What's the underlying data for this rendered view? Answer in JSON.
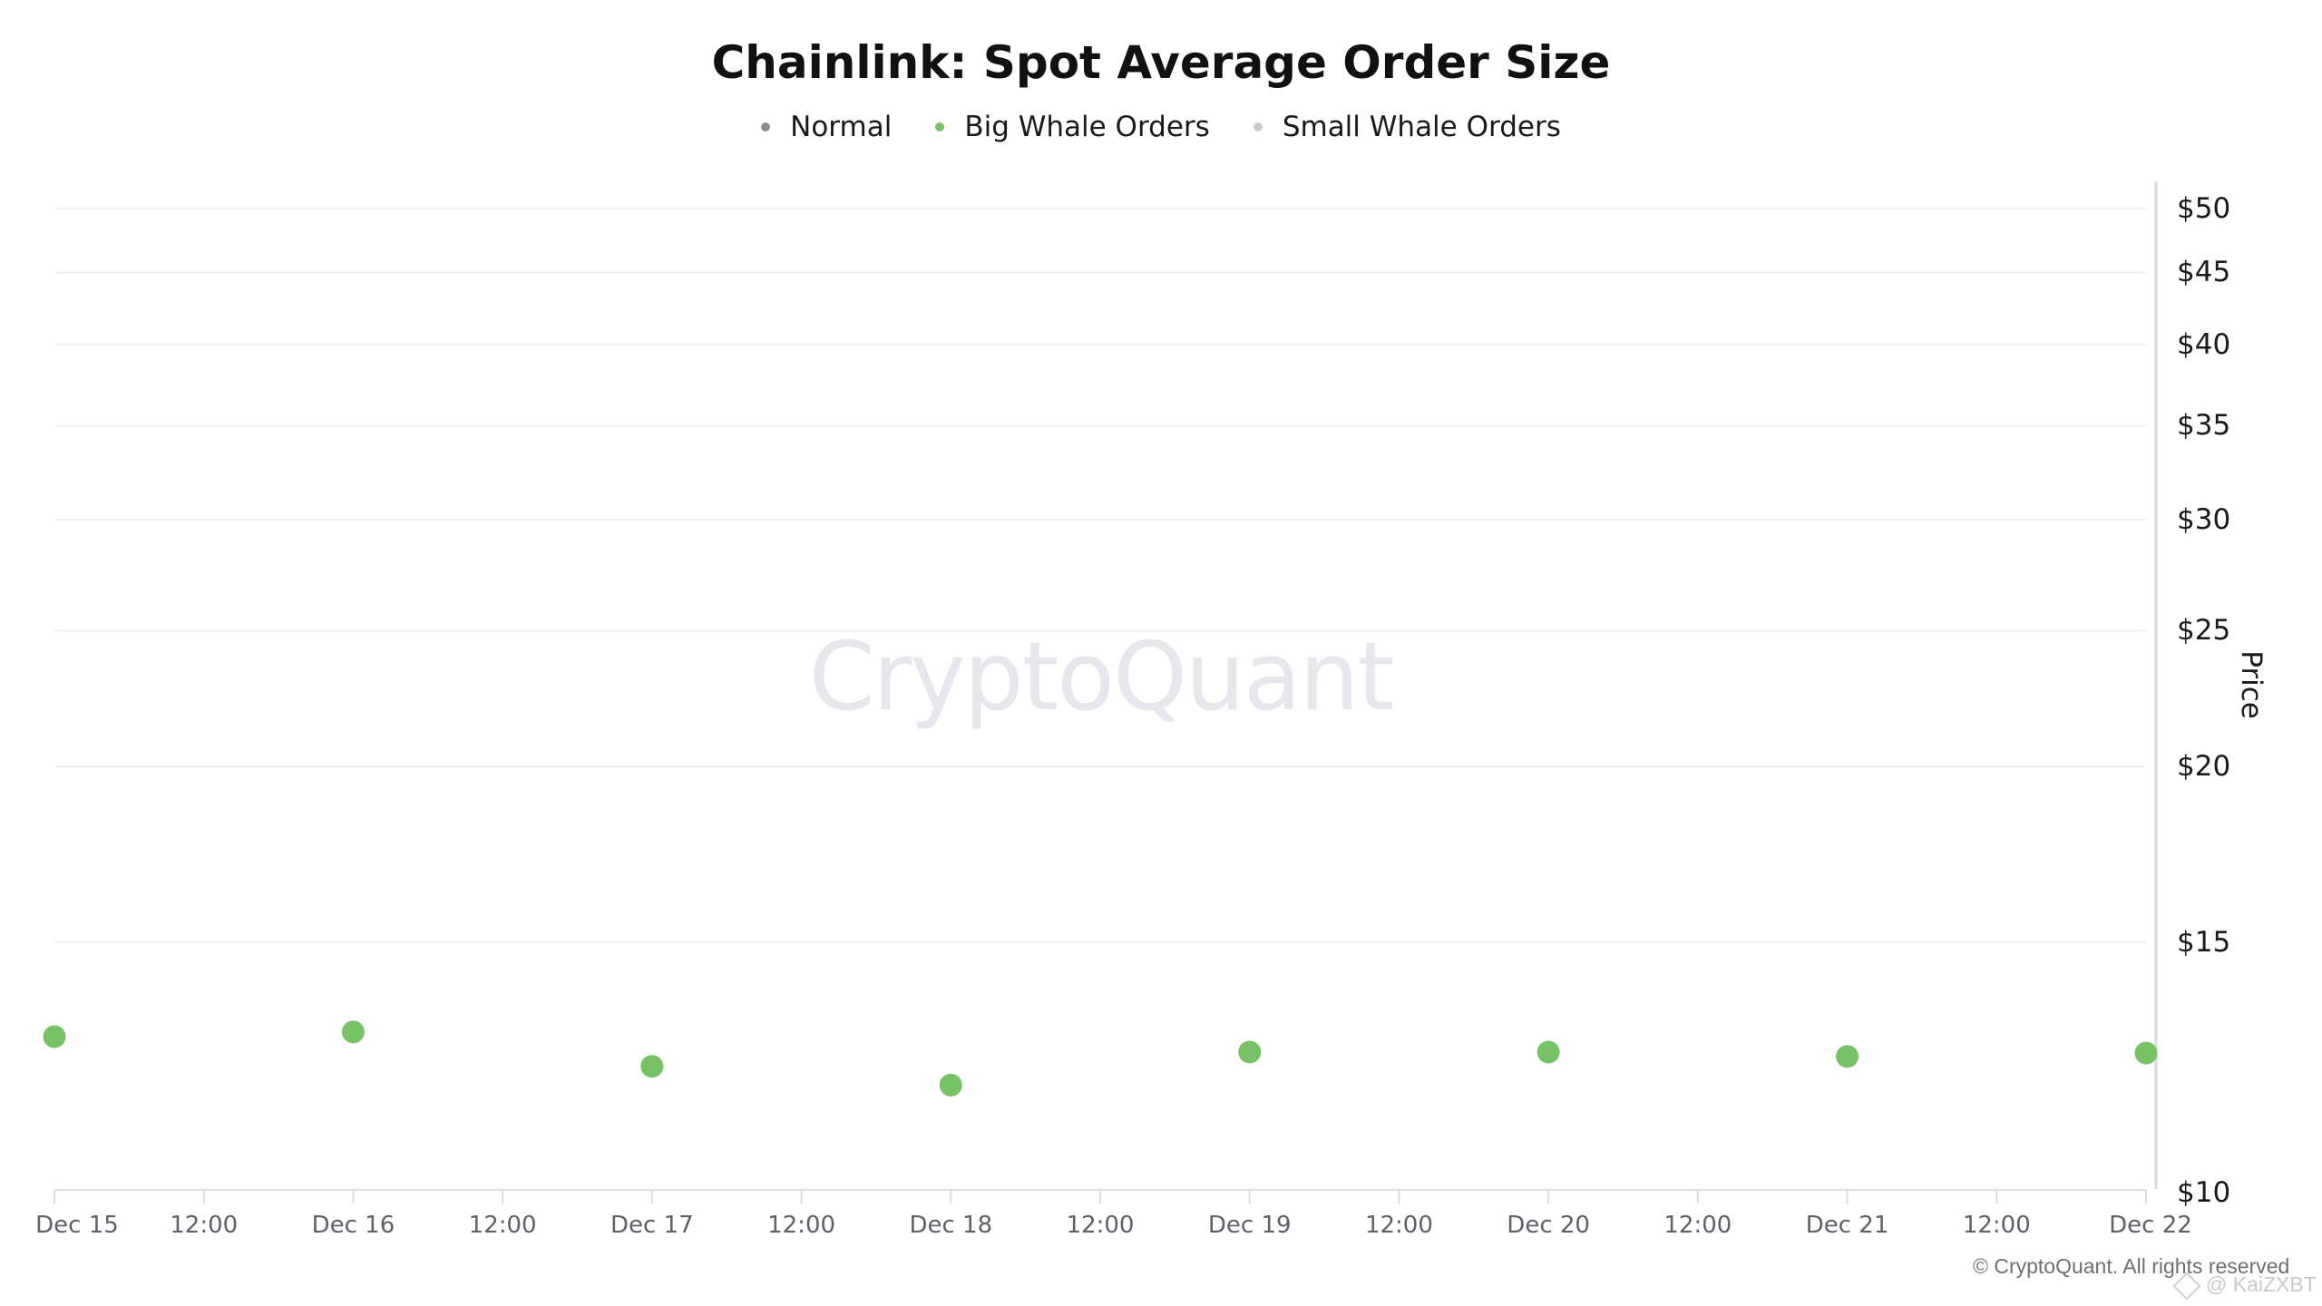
{
  "title": "Chainlink: Spot Average Order Size",
  "legend": [
    {
      "label": "Normal",
      "color": "#8c8c94"
    },
    {
      "label": "Big Whale Orders",
      "color": "#76c265"
    },
    {
      "label": "Small Whale Orders",
      "color": "#c6d2c6"
    }
  ],
  "watermark": "CryptoQuant",
  "y_axis": {
    "title": "Price",
    "ticks": [
      {
        "label": "$50",
        "value": 50
      },
      {
        "label": "$45",
        "value": 45
      },
      {
        "label": "$40",
        "value": 40
      },
      {
        "label": "$35",
        "value": 35
      },
      {
        "label": "$30",
        "value": 30
      },
      {
        "label": "$25",
        "value": 25
      },
      {
        "label": "$20",
        "value": 20
      },
      {
        "label": "$15",
        "value": 15
      },
      {
        "label": "$10",
        "value": 10
      }
    ]
  },
  "x_axis": {
    "ticks": [
      "Dec 15",
      "12:00",
      "Dec 16",
      "12:00",
      "Dec 17",
      "12:00",
      "Dec 18",
      "12:00",
      "Dec 19",
      "12:00",
      "Dec 20",
      "12:00",
      "Dec 21",
      "12:00",
      "Dec 22"
    ]
  },
  "footer": {
    "copyright": "© CryptoQuant. All rights reserved",
    "credit": "@ KaiZXBT"
  },
  "chart_data": {
    "type": "scatter",
    "title": "Chainlink: Spot Average Order Size",
    "xlabel": "",
    "ylabel": "Price",
    "y_scale": "log",
    "ylim": [
      10,
      50
    ],
    "y_axis_position": "right",
    "grid": true,
    "legend_position": "top",
    "legend": [
      "Normal",
      "Big Whale Orders",
      "Small Whale Orders"
    ],
    "x": [
      "Dec 15",
      "Dec 16",
      "Dec 17",
      "Dec 18",
      "Dec 19",
      "Dec 20",
      "Dec 21",
      "Dec 22"
    ],
    "x_tick_labels": [
      "Dec 15",
      "12:00",
      "Dec 16",
      "12:00",
      "Dec 17",
      "12:00",
      "Dec 18",
      "12:00",
      "Dec 19",
      "12:00",
      "Dec 20",
      "12:00",
      "Dec 21",
      "12:00",
      "Dec 22"
    ],
    "series": [
      {
        "name": "Normal",
        "color": "#8c8c94",
        "values": []
      },
      {
        "name": "Big Whale Orders",
        "color": "#76c265",
        "values": [
          12.84,
          12.94,
          12.23,
          11.86,
          12.52,
          12.52,
          12.43,
          12.5
        ]
      },
      {
        "name": "Small Whale Orders",
        "color": "#c6d2c6",
        "values": []
      }
    ]
  }
}
